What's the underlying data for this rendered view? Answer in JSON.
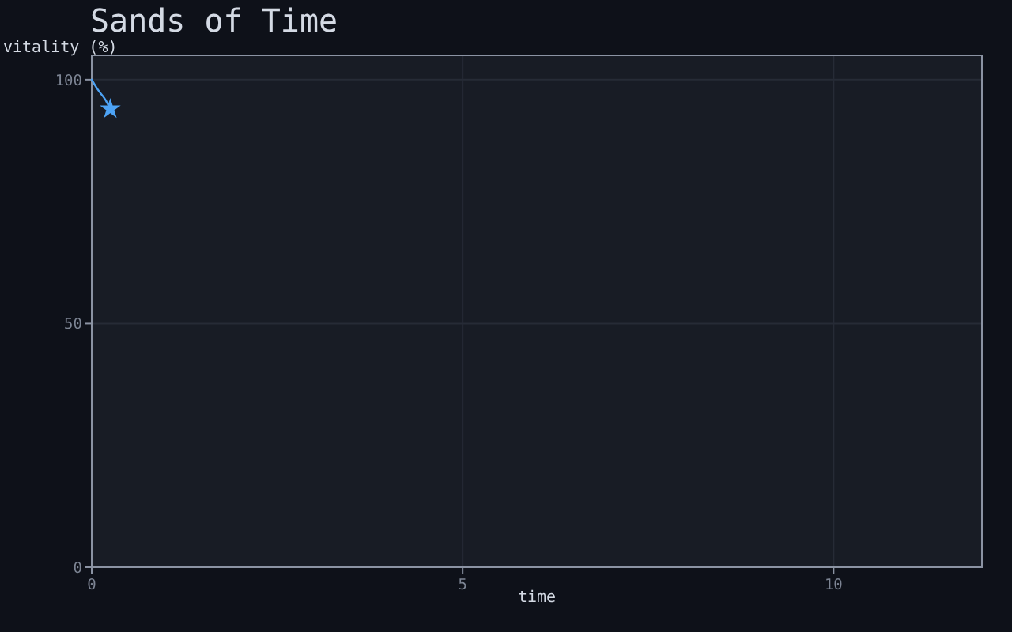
{
  "chart_data": {
    "type": "line",
    "title": "Sands of Time",
    "xlabel": "time",
    "ylabel": "vitality (%)",
    "xlim": [
      0,
      12
    ],
    "xticks": [
      0,
      5,
      10
    ],
    "ylim": [
      0,
      105
    ],
    "yticks": [
      0,
      50,
      100
    ],
    "grid": true,
    "series": [
      {
        "color": "#4da3f5",
        "x": [
          0,
          0.08,
          0.18,
          0.25
        ],
        "values": [
          100,
          98,
          96,
          94
        ],
        "marker": "none"
      },
      {
        "type": "scatter",
        "color": "#4da3f5",
        "x": [
          0.25
        ],
        "values": [
          94
        ],
        "marker": "star"
      }
    ]
  }
}
